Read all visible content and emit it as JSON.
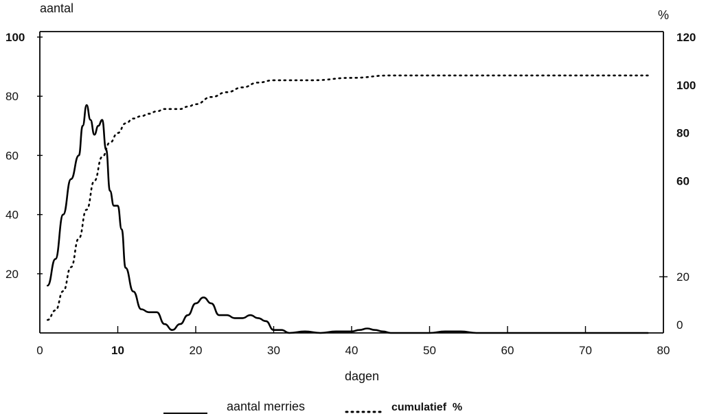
{
  "chart_data": {
    "type": "line",
    "title": "",
    "xlabel": "dagen",
    "ylabel_left": "aantal",
    "ylabel_right": "%",
    "xlim": [
      0,
      80
    ],
    "ylim_left": [
      0,
      100
    ],
    "ylim_right": [
      0,
      120
    ],
    "x_ticks": [
      {
        "value": 0,
        "label": "0",
        "bold": false
      },
      {
        "value": 10,
        "label": "10",
        "bold": true
      },
      {
        "value": 20,
        "label": "20",
        "bold": false
      },
      {
        "value": 30,
        "label": "30",
        "bold": false
      },
      {
        "value": 40,
        "label": "40",
        "bold": false
      },
      {
        "value": 50,
        "label": "50",
        "bold": false
      },
      {
        "value": 60,
        "label": "60",
        "bold": false
      },
      {
        "value": 70,
        "label": "70",
        "bold": false
      },
      {
        "value": 80,
        "label": "80",
        "bold": false
      }
    ],
    "y_left_ticks": [
      {
        "value": 20,
        "label": "20",
        "bold": false
      },
      {
        "value": 40,
        "label": "40",
        "bold": false
      },
      {
        "value": 60,
        "label": "60",
        "bold": false
      },
      {
        "value": 80,
        "label": "80",
        "bold": false
      },
      {
        "value": 100,
        "label": "100",
        "bold": true
      }
    ],
    "y_right_ticks": [
      {
        "value": 0,
        "label": "0",
        "bold": false
      },
      {
        "value": 20,
        "label": "20",
        "bold": false
      },
      {
        "value": 60,
        "label": "60",
        "bold": true
      },
      {
        "value": 80,
        "label": "80",
        "bold": true
      },
      {
        "value": 100,
        "label": "100",
        "bold": true
      },
      {
        "value": 120,
        "label": "120",
        "bold": true
      }
    ],
    "grid": false,
    "legend_position": "bottom-center",
    "series": [
      {
        "name": "aantal merries",
        "axis": "left",
        "style": "solid",
        "x": [
          1,
          2,
          3,
          4,
          5,
          5.5,
          6,
          6.5,
          7,
          7.5,
          8,
          8.5,
          9,
          9.5,
          10,
          10.5,
          11,
          12,
          13,
          14,
          15,
          16,
          17,
          18,
          19,
          20,
          21,
          22,
          23,
          24,
          25,
          26,
          27,
          28,
          29,
          30,
          31,
          32,
          34,
          36,
          38,
          40,
          41,
          42,
          43,
          44,
          45,
          50,
          52,
          54,
          56,
          60,
          65,
          70,
          75,
          78
        ],
        "values": [
          16,
          25,
          40,
          52,
          60,
          70,
          77,
          72,
          67,
          70,
          72,
          62,
          48,
          43,
          43,
          35,
          22,
          14,
          8,
          7,
          7,
          3,
          1,
          3,
          6,
          10,
          12,
          10,
          6,
          6,
          5,
          5,
          6,
          5,
          4,
          1,
          1,
          0,
          0.5,
          0,
          0.5,
          0.5,
          1,
          1.5,
          1,
          0.5,
          0,
          0,
          0.5,
          0.5,
          0,
          0,
          0,
          0,
          0,
          0
        ]
      },
      {
        "name": "cumulatief %",
        "axis": "right",
        "style": "dotted",
        "x": [
          1,
          2,
          3,
          4,
          5,
          6,
          7,
          8,
          9,
          10,
          11,
          12,
          13,
          14,
          15,
          16,
          17,
          18,
          19,
          20,
          22,
          24,
          26,
          28,
          30,
          32,
          35,
          40,
          45,
          50,
          55,
          60,
          65,
          70,
          75,
          78
        ],
        "values": [
          2,
          6,
          14,
          24,
          36,
          48,
          60,
          70,
          76,
          80,
          84,
          86,
          87,
          88,
          89,
          90,
          90,
          90,
          91,
          92,
          95,
          97,
          99,
          101,
          102,
          102,
          102,
          103,
          104,
          104,
          104,
          104,
          104,
          104,
          104,
          104
        ]
      }
    ]
  },
  "legend": {
    "items": [
      {
        "label": "aantal merries",
        "style": "solid"
      },
      {
        "label": "cumulatief  %",
        "style": "dotted"
      }
    ]
  },
  "colors": {
    "line": "#000000",
    "background": "#ffffff"
  }
}
